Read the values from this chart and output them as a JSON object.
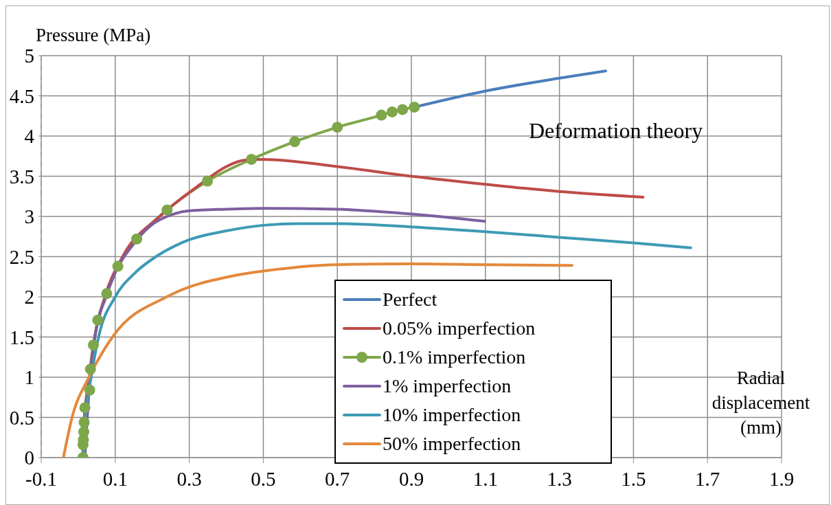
{
  "chart_data": {
    "type": "line",
    "ylabel": "Pressure (MPa)",
    "xlabel": "Radial displacement (mm)",
    "annotations": [
      "Deformation theory"
    ],
    "xlim": [
      -0.1,
      1.9
    ],
    "xticks": [
      -0.1,
      0.1,
      0.3,
      0.5,
      0.7,
      0.9,
      1.1,
      1.3,
      1.5,
      1.7,
      1.9
    ],
    "ylim": [
      0,
      5
    ],
    "yticks": [
      0,
      0.5,
      1,
      1.5,
      2,
      2.5,
      3,
      3.5,
      4,
      4.5,
      5
    ],
    "grid": true,
    "legend": "bottom",
    "marker": "none",
    "line_style": "solid",
    "series": [
      {
        "name": "Perfect",
        "color": "#4a7ebb",
        "x": [
          0.908,
          1.1,
          1.3,
          1.425
        ],
        "values": [
          4.36,
          4.56,
          4.72,
          4.81
        ]
      },
      {
        "name": "0.05% imperfection",
        "color": "#be4b48",
        "x": [
          0.012,
          0.017,
          0.03,
          0.045,
          0.072,
          0.12,
          0.22,
          0.33,
          0.4,
          0.45,
          0.5,
          0.7,
          0.9,
          1.1,
          1.3,
          1.526
        ],
        "values": [
          0,
          0.5,
          1,
          1.5,
          2,
          2.5,
          3,
          3.4,
          3.62,
          3.7,
          3.71,
          3.62,
          3.5,
          3.4,
          3.31,
          3.24
        ]
      },
      {
        "name": "0.1% imperfection",
        "color": "#7ea64a",
        "marker": "circle",
        "x": [
          0.013,
          0.013,
          0.014,
          0.015,
          0.016,
          0.018,
          0.031,
          0.033,
          0.041,
          0.053,
          0.077,
          0.107,
          0.158,
          0.24,
          0.349,
          0.468,
          0.585,
          0.7,
          0.819,
          0.848,
          0.876,
          0.908
        ],
        "values": [
          0,
          0.16,
          0.22,
          0.32,
          0.44,
          0.62,
          0.84,
          1.1,
          1.4,
          1.71,
          2.04,
          2.38,
          2.72,
          3.08,
          3.44,
          3.71,
          3.93,
          4.11,
          4.26,
          4.3,
          4.33,
          4.36
        ]
      },
      {
        "name": "1% imperfection",
        "color": "#7d5fa0",
        "x": [
          0.018,
          0.032,
          0.045,
          0.075,
          0.1,
          0.15,
          0.2,
          0.24,
          0.3,
          0.4,
          0.5,
          0.7,
          0.75,
          0.9,
          1.098
        ],
        "values": [
          0,
          1,
          1.5,
          2,
          2.3,
          2.66,
          2.9,
          3,
          3.07,
          3.09,
          3.1,
          3.09,
          3.08,
          3.03,
          2.94
        ]
      },
      {
        "name": "10% imperfection",
        "color": "#3d9ab5",
        "x": [
          0.014,
          0.02,
          0.035,
          0.055,
          0.1,
          0.154,
          0.21,
          0.3,
          0.4,
          0.5,
          0.6,
          0.7,
          0.9,
          1.1,
          1.3,
          1.5,
          1.655
        ],
        "values": [
          0,
          0.5,
          1,
          1.5,
          2,
          2.3,
          2.5,
          2.71,
          2.82,
          2.89,
          2.91,
          2.91,
          2.87,
          2.81,
          2.74,
          2.67,
          2.61
        ]
      },
      {
        "name": "50% imperfection",
        "color": "#e4883a",
        "x": [
          -0.04,
          -0.016,
          0.028,
          0.094,
          0.244,
          0.418,
          0.5,
          0.7,
          0.9,
          1.1,
          1.334
        ],
        "values": [
          0,
          0.51,
          0.99,
          1.51,
          2.01,
          2.26,
          2.32,
          2.4,
          2.41,
          2.4,
          2.39
        ]
      }
    ]
  }
}
